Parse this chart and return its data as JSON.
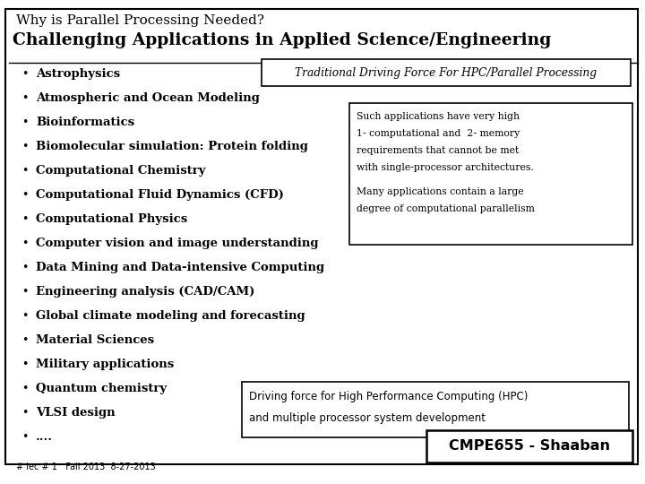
{
  "bg_color": "#ffffff",
  "title_small": "Why is Parallel Processing Needed?",
  "title_large": "Challenging Applications in Applied Science/Engineering",
  "bullet_items": [
    "Astrophysics",
    "Atmospheric and Ocean Modeling",
    "Bioinformatics",
    "Biomolecular simulation: Protein folding",
    "Computational Chemistry",
    "Computational Fluid Dynamics (CFD)",
    "Computational Physics",
    "Computer vision and image understanding",
    "Data Mining and Data-intensive Computing",
    "Engineering analysis (CAD/CAM)",
    "Global climate modeling and forecasting",
    "Material Sciences",
    "Military applications",
    "Quantum chemistry",
    "VLSI design",
    "...."
  ],
  "box1_text": "Traditional Driving Force For HPC/Parallel Processing",
  "box2_lines": [
    "Such applications have very high",
    "1- computational and  2- memory",
    "requirements that cannot be met",
    "with single-processor architectures.",
    "",
    "Many applications contain a large",
    "degree of computational parallelism"
  ],
  "box2_underline": [
    true,
    true,
    true,
    false,
    false,
    false,
    false
  ],
  "box3_lines": [
    "Driving force for High Performance Computing (HPC)",
    "and multiple processor system development"
  ],
  "footer_text": "CMPE655 - Shaaban",
  "footer_small": "# lec # 1   Fall 2013  8-27-2013"
}
